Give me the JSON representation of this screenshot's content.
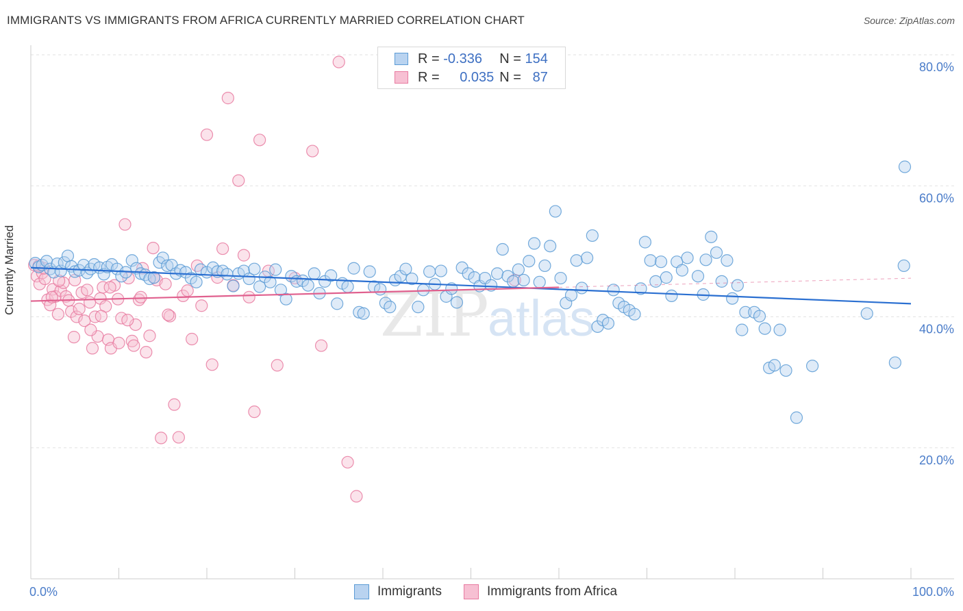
{
  "header": {
    "title": "IMMIGRANTS VS IMMIGRANTS FROM AFRICA CURRENTLY MARRIED CORRELATION CHART",
    "source": "Source: ZipAtlas.com"
  },
  "watermark": {
    "zip": "ZIP",
    "atlas": "atlas"
  },
  "legend": {
    "rows": [
      {
        "r_label": "R =",
        "r_value": "-0.336",
        "n_label": "N =",
        "n_value": "154"
      },
      {
        "r_label": "R =",
        "r_value": "0.035",
        "n_label": "N =",
        "n_value": "87"
      }
    ]
  },
  "bottom_legend": {
    "series1": "Immigrants",
    "series2": "Immigrants from Africa"
  },
  "colors": {
    "blue": "#5b9bd5",
    "blue_fill": "#b9d3f0",
    "pink": "#e87aa0",
    "pink_fill": "#f7c0d3",
    "blue_line": "#2a6fd1",
    "pink_line": "#e0608e",
    "tick_label": "#4a7cc9"
  },
  "chart_data": {
    "type": "scatter",
    "title": "IMMIGRANTS VS IMMIGRANTS FROM AFRICA CURRENTLY MARRIED CORRELATION CHART",
    "ylabel": "Currently Married",
    "xlabel": "",
    "xlim": [
      0,
      105
    ],
    "ylim": [
      0,
      80
    ],
    "x_tick_labels": [
      "0.0%",
      "100.0%"
    ],
    "y_ticks": [
      20,
      40,
      60,
      80
    ],
    "y_tick_labels": [
      "20.0%",
      "40.0%",
      "60.0%",
      "80.0%"
    ],
    "grid": true,
    "legend_position": "top-center",
    "series": [
      {
        "name": "Immigrants",
        "color": "#5b9bd5",
        "R": -0.336,
        "N": 154,
        "trend": {
          "x": [
            0,
            100
          ],
          "y": [
            47.5,
            42.0
          ]
        },
        "points": [
          [
            0.5,
            48.2
          ],
          [
            0.9,
            47.6
          ],
          [
            1.3,
            47.9
          ],
          [
            1.8,
            48.5
          ],
          [
            2.2,
            47.3
          ],
          [
            2.6,
            46.8
          ],
          [
            3.0,
            48.1
          ],
          [
            3.4,
            47.0
          ],
          [
            3.8,
            48.3
          ],
          [
            4.2,
            49.3
          ],
          [
            4.6,
            47.7
          ],
          [
            5.0,
            46.9
          ],
          [
            5.5,
            47.1
          ],
          [
            6.0,
            47.9
          ],
          [
            6.4,
            46.7
          ],
          [
            6.8,
            47.3
          ],
          [
            7.2,
            48.0
          ],
          [
            7.8,
            47.5
          ],
          [
            8.3,
            46.5
          ],
          [
            8.7,
            47.6
          ],
          [
            9.2,
            48.0
          ],
          [
            9.8,
            47.3
          ],
          [
            10.3,
            46.2
          ],
          [
            10.8,
            46.8
          ],
          [
            11.5,
            48.6
          ],
          [
            12.0,
            47.4
          ],
          [
            12.5,
            46.6
          ],
          [
            13.0,
            46.4
          ],
          [
            13.5,
            45.8
          ],
          [
            14.0,
            46.0
          ],
          [
            14.6,
            48.3
          ],
          [
            15.0,
            49.0
          ],
          [
            15.5,
            47.8
          ],
          [
            16.0,
            47.9
          ],
          [
            16.5,
            46.6
          ],
          [
            17.0,
            47.1
          ],
          [
            17.6,
            46.8
          ],
          [
            18.2,
            45.9
          ],
          [
            18.8,
            45.3
          ],
          [
            19.3,
            47.2
          ],
          [
            20.0,
            46.8
          ],
          [
            20.7,
            47.5
          ],
          [
            21.2,
            46.9
          ],
          [
            21.8,
            47.0
          ],
          [
            22.3,
            46.5
          ],
          [
            23.0,
            44.7
          ],
          [
            23.6,
            46.6
          ],
          [
            24.2,
            47.0
          ],
          [
            24.8,
            45.8
          ],
          [
            25.4,
            47.3
          ],
          [
            26.0,
            44.6
          ],
          [
            26.6,
            46.1
          ],
          [
            27.2,
            45.3
          ],
          [
            27.8,
            47.2
          ],
          [
            28.4,
            44.1
          ],
          [
            29.0,
            42.7
          ],
          [
            29.6,
            46.2
          ],
          [
            30.2,
            45.4
          ],
          [
            30.9,
            45.5
          ],
          [
            31.5,
            44.8
          ],
          [
            32.2,
            46.6
          ],
          [
            32.8,
            43.6
          ],
          [
            33.4,
            45.4
          ],
          [
            34.1,
            46.3
          ],
          [
            34.8,
            42.0
          ],
          [
            35.4,
            45.1
          ],
          [
            36.0,
            44.6
          ],
          [
            36.7,
            47.4
          ],
          [
            37.3,
            40.7
          ],
          [
            37.8,
            40.5
          ],
          [
            38.5,
            46.9
          ],
          [
            39.0,
            44.6
          ],
          [
            39.7,
            44.2
          ],
          [
            40.3,
            42.1
          ],
          [
            40.8,
            41.5
          ],
          [
            41.4,
            45.6
          ],
          [
            42.0,
            46.2
          ],
          [
            42.6,
            47.3
          ],
          [
            43.3,
            45.8
          ],
          [
            44.0,
            41.5
          ],
          [
            44.6,
            44.1
          ],
          [
            45.3,
            46.9
          ],
          [
            45.9,
            45.0
          ],
          [
            46.6,
            47.0
          ],
          [
            47.2,
            43.1
          ],
          [
            47.8,
            44.3
          ],
          [
            48.4,
            42.2
          ],
          [
            49.0,
            47.5
          ],
          [
            49.7,
            46.6
          ],
          [
            50.4,
            46.0
          ],
          [
            51.0,
            44.7
          ],
          [
            51.6,
            45.9
          ],
          [
            52.3,
            44.8
          ],
          [
            53.0,
            46.6
          ],
          [
            53.6,
            50.3
          ],
          [
            54.2,
            46.2
          ],
          [
            54.8,
            45.4
          ],
          [
            55.4,
            47.2
          ],
          [
            56.0,
            45.6
          ],
          [
            56.6,
            48.5
          ],
          [
            57.2,
            51.2
          ],
          [
            57.8,
            45.3
          ],
          [
            58.4,
            47.8
          ],
          [
            59.0,
            50.8
          ],
          [
            59.6,
            56.1
          ],
          [
            60.2,
            45.9
          ],
          [
            60.8,
            42.1
          ],
          [
            61.4,
            43.3
          ],
          [
            62.0,
            48.6
          ],
          [
            62.6,
            44.4
          ],
          [
            63.2,
            49.0
          ],
          [
            63.8,
            52.4
          ],
          [
            64.4,
            38.5
          ],
          [
            65.0,
            39.5
          ],
          [
            65.6,
            39.0
          ],
          [
            66.2,
            44.1
          ],
          [
            66.8,
            42.1
          ],
          [
            67.4,
            41.5
          ],
          [
            68.0,
            41.0
          ],
          [
            68.6,
            40.4
          ],
          [
            69.3,
            44.3
          ],
          [
            69.8,
            51.4
          ],
          [
            70.4,
            48.6
          ],
          [
            71.0,
            45.4
          ],
          [
            71.6,
            48.4
          ],
          [
            72.2,
            46.0
          ],
          [
            72.8,
            43.2
          ],
          [
            73.4,
            48.4
          ],
          [
            74.0,
            47.1
          ],
          [
            74.6,
            49.0
          ],
          [
            75.8,
            46.2
          ],
          [
            76.4,
            43.4
          ],
          [
            76.7,
            48.7
          ],
          [
            77.3,
            52.2
          ],
          [
            77.9,
            49.8
          ],
          [
            78.5,
            45.4
          ],
          [
            79.1,
            48.6
          ],
          [
            79.7,
            42.8
          ],
          [
            80.3,
            44.8
          ],
          [
            80.8,
            38.0
          ],
          [
            81.2,
            40.7
          ],
          [
            82.2,
            40.7
          ],
          [
            82.8,
            40.1
          ],
          [
            83.4,
            38.2
          ],
          [
            83.9,
            32.2
          ],
          [
            84.5,
            32.6
          ],
          [
            85.1,
            38.0
          ],
          [
            85.8,
            31.8
          ],
          [
            87.0,
            24.6
          ],
          [
            99.3,
            62.9
          ],
          [
            99.2,
            47.8
          ],
          [
            98.2,
            33.0
          ],
          [
            95.0,
            40.5
          ],
          [
            88.8,
            32.5
          ]
        ]
      },
      {
        "name": "Immigrants from Africa",
        "color": "#e87aa0",
        "R": 0.035,
        "N": 87,
        "trend": {
          "x": [
            0,
            60
          ],
          "y": [
            42.4,
            44.5
          ]
        },
        "trend_dashed": {
          "x": [
            60,
            100
          ],
          "y": [
            44.5,
            45.9
          ]
        },
        "points": [
          [
            0.4,
            47.9
          ],
          [
            0.7,
            46.2
          ],
          [
            1.0,
            45.0
          ],
          [
            1.3,
            46.7
          ],
          [
            1.6,
            45.8
          ],
          [
            1.9,
            42.6
          ],
          [
            2.2,
            41.8
          ],
          [
            2.5,
            44.2
          ],
          [
            2.8,
            43.1
          ],
          [
            3.1,
            40.4
          ],
          [
            3.4,
            44.0
          ],
          [
            3.7,
            45.2
          ],
          [
            4.0,
            43.1
          ],
          [
            4.3,
            42.5
          ],
          [
            4.6,
            40.8
          ],
          [
            4.9,
            36.9
          ],
          [
            5.2,
            40.0
          ],
          [
            5.5,
            41.2
          ],
          [
            5.8,
            43.7
          ],
          [
            6.1,
            39.4
          ],
          [
            6.4,
            44.1
          ],
          [
            6.7,
            42.2
          ],
          [
            7.0,
            35.2
          ],
          [
            7.3,
            40.0
          ],
          [
            7.6,
            37.0
          ],
          [
            7.9,
            42.8
          ],
          [
            8.2,
            44.5
          ],
          [
            8.5,
            41.6
          ],
          [
            8.8,
            36.5
          ],
          [
            9.1,
            35.2
          ],
          [
            9.5,
            44.8
          ],
          [
            9.9,
            42.7
          ],
          [
            10.3,
            39.8
          ],
          [
            10.7,
            54.1
          ],
          [
            11.1,
            45.9
          ],
          [
            11.5,
            36.3
          ],
          [
            11.9,
            38.8
          ],
          [
            12.3,
            42.6
          ],
          [
            12.7,
            47.4
          ],
          [
            13.1,
            34.6
          ],
          [
            13.5,
            37.1
          ],
          [
            13.9,
            50.5
          ],
          [
            14.3,
            45.6
          ],
          [
            14.8,
            21.5
          ],
          [
            15.3,
            45.0
          ],
          [
            15.8,
            40.1
          ],
          [
            16.3,
            26.6
          ],
          [
            16.8,
            21.6
          ],
          [
            17.3,
            43.2
          ],
          [
            17.8,
            44.0
          ],
          [
            18.3,
            36.6
          ],
          [
            18.9,
            47.8
          ],
          [
            19.4,
            41.7
          ],
          [
            20.0,
            67.8
          ],
          [
            20.6,
            32.7
          ],
          [
            21.2,
            46.0
          ],
          [
            21.8,
            50.4
          ],
          [
            22.4,
            73.4
          ],
          [
            23.0,
            44.8
          ],
          [
            23.6,
            60.8
          ],
          [
            24.2,
            49.4
          ],
          [
            24.8,
            43.0
          ],
          [
            25.4,
            25.5
          ],
          [
            26.0,
            67.0
          ],
          [
            27.0,
            47.0
          ],
          [
            28.0,
            32.6
          ],
          [
            30.0,
            45.9
          ],
          [
            32.0,
            65.3
          ],
          [
            33.0,
            35.6
          ],
          [
            35.0,
            78.9
          ],
          [
            36.0,
            17.8
          ],
          [
            37.0,
            12.6
          ],
          [
            10.0,
            36.0
          ],
          [
            11.0,
            39.5
          ],
          [
            12.5,
            43.0
          ],
          [
            14.0,
            46.0
          ],
          [
            6.8,
            38.0
          ],
          [
            8.0,
            40.1
          ],
          [
            5.0,
            45.6
          ],
          [
            3.2,
            45.5
          ],
          [
            2.4,
            43.0
          ],
          [
            1.5,
            47.4
          ],
          [
            0.9,
            47.8
          ],
          [
            9.0,
            44.5
          ],
          [
            11.7,
            35.6
          ],
          [
            15.6,
            40.3
          ],
          [
            55.0,
            45.6
          ]
        ]
      }
    ]
  }
}
